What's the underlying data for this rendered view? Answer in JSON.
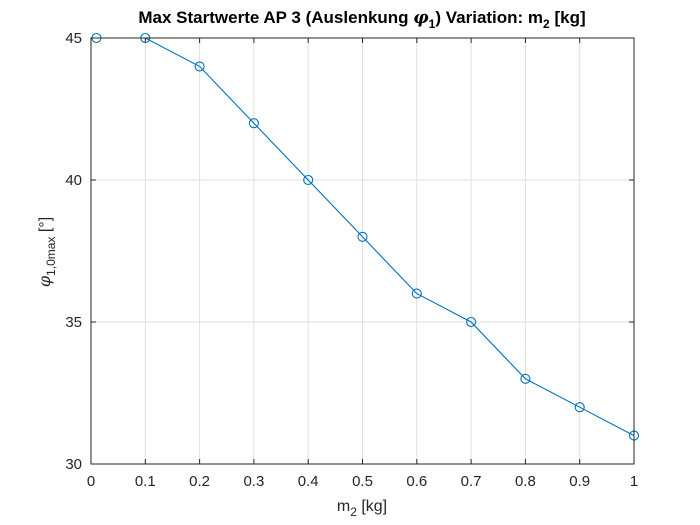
{
  "chart_data": {
    "type": "line",
    "title": {
      "prefix": "Max Startwerte AP 3 (Auslenkung ",
      "symbol": "φ",
      "symbol_sub": "1",
      "middle": ")  Variation: m",
      "m_sub": "2",
      "suffix": " [kg]"
    },
    "xlabel": {
      "base": "m",
      "sub": "2",
      "suffix": " [kg]"
    },
    "ylabel": {
      "symbol": "φ",
      "sub": "1,0max",
      "suffix": " [°]"
    },
    "xlim": [
      0,
      1
    ],
    "ylim": [
      30,
      45
    ],
    "x_ticks": [
      0,
      0.1,
      0.2,
      0.3,
      0.4,
      0.5,
      0.6,
      0.7,
      0.8,
      0.9,
      1
    ],
    "x_tick_labels": [
      "0",
      "0.1",
      "0.2",
      "0.3",
      "0.4",
      "0.5",
      "0.6",
      "0.7",
      "0.8",
      "0.9",
      "1"
    ],
    "y_ticks": [
      30,
      35,
      40,
      45
    ],
    "y_tick_labels": [
      "30",
      "35",
      "40",
      "45"
    ],
    "grid": true,
    "marker": "circle",
    "series": [
      {
        "x": [
          0.01,
          0.1,
          0.2,
          0.3,
          0.4,
          0.5,
          0.6,
          0.7,
          0.8,
          0.9,
          1.0
        ],
        "y": [
          45,
          45,
          44,
          42,
          40,
          38,
          36,
          35,
          33,
          32,
          31
        ],
        "color": "#0072BD"
      }
    ]
  }
}
